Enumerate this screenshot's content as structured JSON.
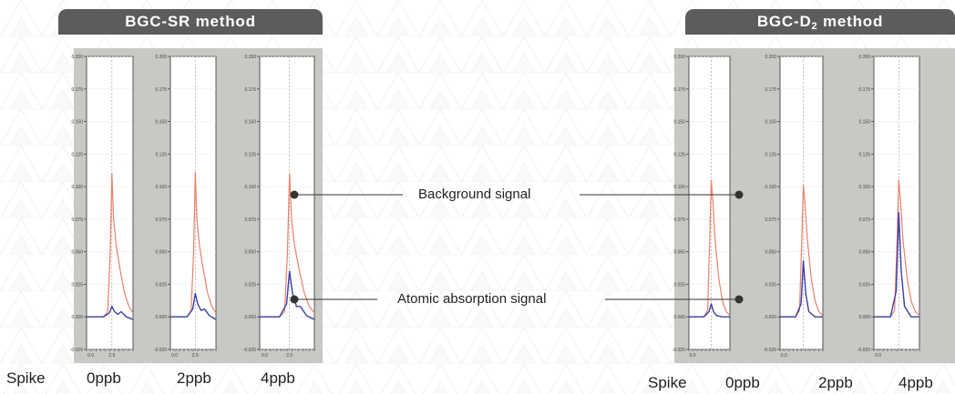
{
  "left_method": {
    "prefix": "BGC-SR",
    "subscript": "",
    "suffix": " method"
  },
  "right_method": {
    "prefix": "BGC-D",
    "subscript": "2",
    "suffix": " method"
  },
  "callouts": {
    "background": "Background signal",
    "atomic": "Atomic absorption signal"
  },
  "spike_labels": {
    "left": [
      "Spike",
      "0ppb",
      "2ppb",
      "4ppb"
    ],
    "right": [
      "Spike",
      "0ppb",
      "2ppb",
      "4ppb"
    ]
  },
  "colors": {
    "background_signal": "#e8806a",
    "atomic_signal": "#3a3fa8",
    "tab": "#5c5c5c",
    "panel": "#c8c8c4"
  },
  "chart_data": [
    {
      "type": "line",
      "group": "BGC-SR method",
      "ylim": [
        -0.025,
        0.2
      ],
      "yticks": [
        "0.200",
        "0.175",
        "0.150",
        "0.125",
        "0.100",
        "0.075",
        "0.050",
        "0.025",
        "0.000",
        "-0.025"
      ],
      "xticks": [
        "0.0",
        "2.5"
      ],
      "xlim": [
        -0.5,
        5.0
      ],
      "panels": [
        {
          "spike": "0ppb",
          "series": [
            {
              "color": "#e8806a",
              "x": [
                -0.5,
                1.5,
                2.0,
                2.3,
                2.5,
                2.7,
                3.0,
                3.5,
                4.0,
                4.5,
                5.0
              ],
              "y": [
                0.0,
                0.0,
                0.004,
                0.05,
                0.11,
                0.075,
                0.055,
                0.035,
                0.018,
                0.008,
                0.003
              ]
            },
            {
              "color": "#3a3fa8",
              "x": [
                -0.5,
                1.5,
                2.2,
                2.5,
                2.8,
                3.2,
                3.6,
                4.2,
                5.0
              ],
              "y": [
                0.0,
                0.0,
                0.003,
                0.008,
                0.004,
                0.002,
                0.004,
                0.0,
                -0.002
              ]
            }
          ]
        },
        {
          "spike": "2ppb",
          "series": [
            {
              "color": "#e8806a",
              "x": [
                -0.5,
                1.5,
                2.0,
                2.3,
                2.5,
                2.7,
                3.0,
                3.5,
                4.0,
                4.5,
                5.0
              ],
              "y": [
                0.0,
                0.0,
                0.004,
                0.05,
                0.111,
                0.075,
                0.055,
                0.035,
                0.018,
                0.008,
                0.003
              ]
            },
            {
              "color": "#3a3fa8",
              "x": [
                -0.5,
                1.5,
                2.2,
                2.5,
                2.8,
                3.2,
                3.6,
                4.2,
                5.0
              ],
              "y": [
                0.0,
                0.0,
                0.006,
                0.018,
                0.01,
                0.005,
                0.006,
                0.001,
                -0.002
              ]
            }
          ]
        },
        {
          "spike": "4ppb",
          "series": [
            {
              "color": "#e8806a",
              "x": [
                -0.5,
                1.5,
                2.0,
                2.3,
                2.5,
                2.7,
                3.0,
                3.5,
                4.0,
                4.5,
                5.0
              ],
              "y": [
                0.0,
                0.0,
                0.004,
                0.05,
                0.11,
                0.075,
                0.055,
                0.035,
                0.018,
                0.008,
                0.003
              ]
            },
            {
              "color": "#3a3fa8",
              "x": [
                -0.5,
                1.5,
                2.2,
                2.5,
                2.8,
                3.2,
                3.6,
                4.2,
                5.0
              ],
              "y": [
                0.0,
                0.0,
                0.01,
                0.035,
                0.018,
                0.008,
                0.008,
                0.001,
                -0.002
              ]
            }
          ]
        }
      ]
    },
    {
      "type": "line",
      "group": "BGC-D2 method",
      "ylim": [
        -0.025,
        0.2
      ],
      "yticks": [
        "0.200",
        "0.175",
        "0.150",
        "0.125",
        "0.100",
        "0.075",
        "0.050",
        "0.025",
        "0.000",
        "-0.025"
      ],
      "xticks": [
        "0.0"
      ],
      "xlim": [
        -0.5,
        5.0
      ],
      "panels": [
        {
          "spike": "0ppb",
          "series": [
            {
              "color": "#e8806a",
              "x": [
                -0.5,
                1.5,
                2.0,
                2.3,
                2.5,
                2.7,
                3.0,
                3.5,
                4.0,
                4.5,
                5.0
              ],
              "y": [
                0.0,
                0.0,
                0.005,
                0.06,
                0.105,
                0.09,
                0.06,
                0.03,
                0.012,
                0.004,
                0.001
              ]
            },
            {
              "color": "#3a3fa8",
              "x": [
                -0.5,
                1.5,
                2.2,
                2.5,
                2.8,
                3.2,
                4.0,
                5.0
              ],
              "y": [
                0.0,
                0.0,
                0.004,
                0.01,
                0.004,
                0.001,
                0.0,
                0.0
              ]
            }
          ]
        },
        {
          "spike": "2ppb",
          "series": [
            {
              "color": "#e8806a",
              "x": [
                -0.5,
                1.5,
                2.0,
                2.3,
                2.5,
                2.7,
                3.0,
                3.5,
                4.0,
                4.5,
                5.0
              ],
              "y": [
                0.0,
                0.0,
                0.005,
                0.06,
                0.101,
                0.088,
                0.06,
                0.03,
                0.012,
                0.004,
                0.001
              ]
            },
            {
              "color": "#3a3fa8",
              "x": [
                -0.5,
                1.5,
                2.2,
                2.5,
                2.8,
                3.2,
                4.0,
                5.0
              ],
              "y": [
                0.0,
                0.0,
                0.01,
                0.043,
                0.018,
                0.004,
                0.0,
                0.0
              ]
            }
          ]
        },
        {
          "spike": "4ppb",
          "series": [
            {
              "color": "#e8806a",
              "x": [
                -0.5,
                1.5,
                2.0,
                2.3,
                2.5,
                2.7,
                3.0,
                3.5,
                4.0,
                4.5,
                5.0
              ],
              "y": [
                0.0,
                0.0,
                0.005,
                0.06,
                0.105,
                0.09,
                0.06,
                0.03,
                0.012,
                0.004,
                0.001
              ]
            },
            {
              "color": "#3a3fa8",
              "x": [
                -0.5,
                1.5,
                2.2,
                2.5,
                2.8,
                3.2,
                4.0,
                5.0
              ],
              "y": [
                0.0,
                0.0,
                0.02,
                0.08,
                0.035,
                0.008,
                0.0,
                0.0
              ]
            }
          ]
        }
      ]
    }
  ]
}
